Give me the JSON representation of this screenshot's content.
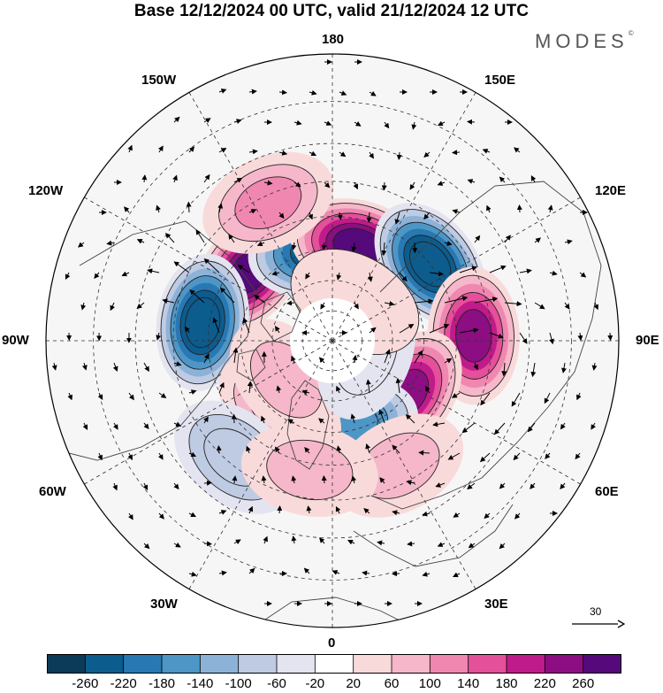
{
  "header": {
    "title": "Base 12/12/2024 00 UTC, valid 21/12/2024 12 UTC",
    "brand": "MODES",
    "brand_mark": "©"
  },
  "map": {
    "projection": "polar-stereographic-north",
    "longitude_labels": {
      "top": "180",
      "bottom": "0",
      "left": "90W",
      "right": "90E",
      "upper_left_1": "150W",
      "upper_left_2": "120W",
      "upper_right_1": "150E",
      "upper_right_2": "120E",
      "lower_left_1": "60W",
      "lower_left_2": "30W",
      "lower_right_1": "60E",
      "lower_right_2": "30E"
    },
    "anomalies": [
      {
        "lon": -130,
        "lat": 55,
        "value": 260
      },
      {
        "lon": -98,
        "lat": 48,
        "value": -260
      },
      {
        "lon": -170,
        "lat": 60,
        "value": -240
      },
      {
        "lon": 165,
        "lat": 58,
        "value": 260
      },
      {
        "lon": 128,
        "lat": 50,
        "value": -260
      },
      {
        "lon": 92,
        "lat": 45,
        "value": 240
      },
      {
        "lon": 55,
        "lat": 60,
        "value": 220
      },
      {
        "lon": 12,
        "lat": 62,
        "value": -180
      },
      {
        "lon": -38,
        "lat": 62,
        "value": 100
      },
      {
        "lon": -40,
        "lat": 42,
        "value": -100
      },
      {
        "lon": -155,
        "lat": 42,
        "value": 100
      },
      {
        "lon": -50,
        "lat": 70,
        "value": 60
      },
      {
        "lon": 28,
        "lat": 45,
        "value": 80
      },
      {
        "lon": 70,
        "lat": 78,
        "value": -60
      },
      {
        "lon": 150,
        "lat": 75,
        "value": 40
      },
      {
        "lon": -10,
        "lat": 48,
        "value": 60
      }
    ],
    "wind_reference": {
      "value": "30"
    }
  },
  "colorbar": {
    "ticks": [
      "-260",
      "-220",
      "-180",
      "-140",
      "-100",
      "-60",
      "-20",
      "20",
      "60",
      "100",
      "140",
      "180",
      "220",
      "260"
    ],
    "colors": [
      "#0b3b58",
      "#0c5c8e",
      "#2878b3",
      "#4d96c6",
      "#8db2d8",
      "#bfcbe3",
      "#e4e4f0",
      "#ffffff",
      "#f9dada",
      "#f5b7c9",
      "#f087b0",
      "#e4509a",
      "#c01b8a",
      "#8c0e82",
      "#55097a"
    ]
  }
}
